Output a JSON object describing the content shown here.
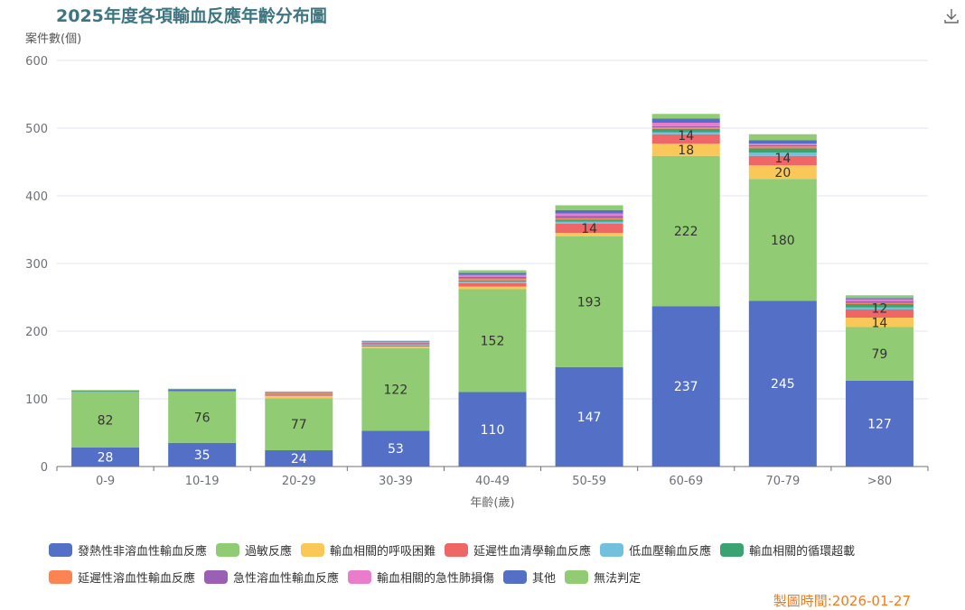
{
  "chart_data": {
    "type": "bar",
    "stacked": true,
    "title": "2025年度各項輸血反應年齡分布圖",
    "xlabel": "年齡(歲)",
    "ylabel": "案件數(個)",
    "ylim": [
      0,
      600
    ],
    "yticks": [
      0,
      100,
      200,
      300,
      400,
      500,
      600
    ],
    "categories": [
      "0-9",
      "10-19",
      "20-29",
      "30-39",
      "40-49",
      "50-59",
      "60-69",
      "70-79",
      ">80"
    ],
    "legend_position": "bottom",
    "series": [
      {
        "name": "發熱性非溶血性輸血反應",
        "color": "#5470c6",
        "values": [
          28,
          35,
          24,
          53,
          110,
          147,
          237,
          245,
          127
        ]
      },
      {
        "name": "過敏反應",
        "color": "#91cc75",
        "values": [
          82,
          76,
          77,
          122,
          152,
          193,
          222,
          180,
          79
        ]
      },
      {
        "name": "輸血相關的呼吸困難",
        "color": "#fac858",
        "values": [
          0,
          0,
          3,
          2,
          4,
          5,
          18,
          20,
          14
        ]
      },
      {
        "name": "延遲性血清學輸血反應",
        "color": "#ee6666",
        "values": [
          0,
          0,
          1,
          2,
          5,
          14,
          14,
          14,
          12
        ]
      },
      {
        "name": "低血壓輸血反應",
        "color": "#73c0de",
        "values": [
          1,
          0,
          1,
          1,
          2,
          3,
          3,
          5,
          3
        ]
      },
      {
        "name": "輸血相關的循環超載",
        "color": "#3ba272",
        "values": [
          0,
          0,
          1,
          1,
          2,
          3,
          5,
          6,
          5
        ]
      },
      {
        "name": "延遲性溶血性輸血反應",
        "color": "#fc8452",
        "values": [
          0,
          0,
          1,
          1,
          3,
          2,
          2,
          3,
          2
        ]
      },
      {
        "name": "急性溶血性輸血反應",
        "color": "#9a60b4",
        "values": [
          0,
          1,
          1,
          1,
          2,
          3,
          2,
          2,
          2
        ]
      },
      {
        "name": "輸血相關的急性肺損傷",
        "color": "#ea7ccc",
        "values": [
          0,
          0,
          1,
          1,
          3,
          4,
          5,
          2,
          3
        ]
      },
      {
        "name": "其他",
        "color": "#5470c6",
        "values": [
          1,
          2,
          0,
          1,
          3,
          5,
          6,
          5,
          2
        ]
      },
      {
        "name": "無法判定",
        "color": "#91cc75",
        "values": [
          1,
          1,
          1,
          1,
          4,
          7,
          7,
          9,
          4
        ]
      }
    ],
    "label_threshold": 12
  },
  "credit": "製圖時間:2026-01-27"
}
